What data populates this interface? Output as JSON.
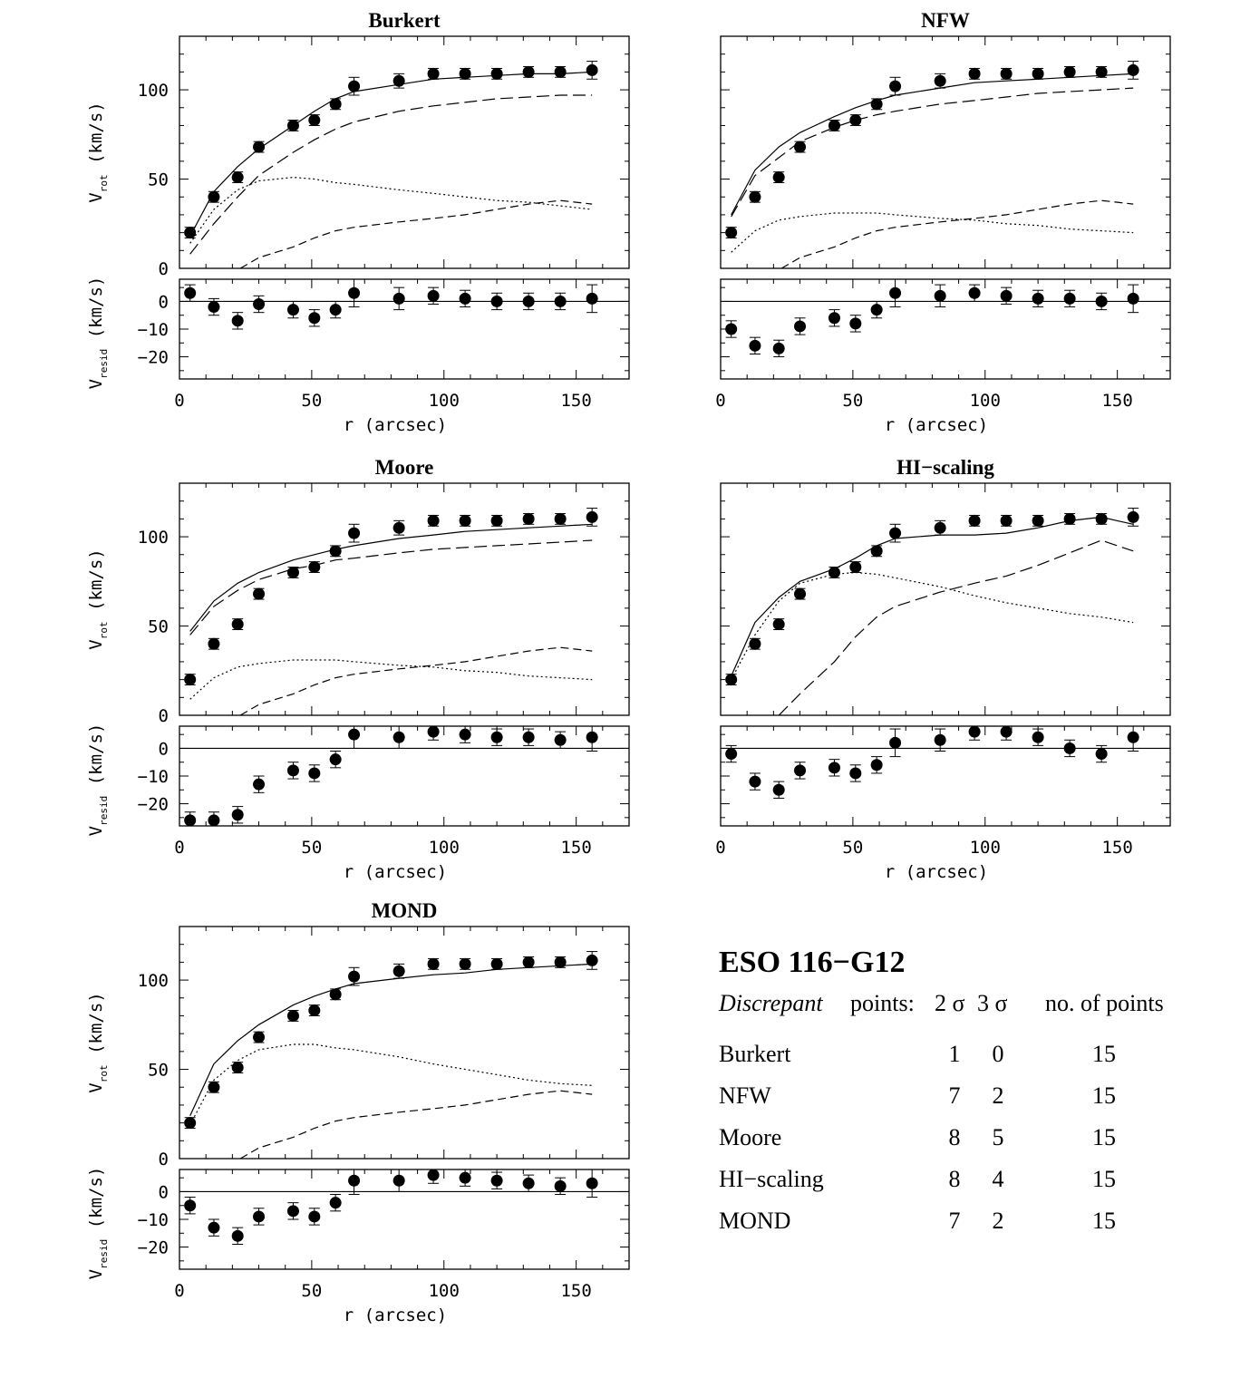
{
  "r_label": "r (arcsec)",
  "vrot_label": "V",
  "vrot_sub": "rot",
  "vresid_label": "V",
  "vresid_sub": "resid",
  "unit_label": " (km/s)",
  "x_ticks": [
    0,
    50,
    100,
    150
  ],
  "y_ticks_main": [
    0,
    50,
    100
  ],
  "y_ticks_resid": [
    0,
    -10,
    -20
  ],
  "chart_data": [
    {
      "type": "scatter",
      "title": "Burkert",
      "xlim": [
        0,
        170
      ],
      "ylim": [
        0,
        130
      ],
      "resid_ylim": [
        -28,
        8
      ],
      "observed": {
        "r": [
          4,
          13,
          22,
          30,
          43,
          51,
          59,
          66,
          83,
          96,
          108,
          120,
          132,
          144,
          156
        ],
        "v": [
          20,
          40,
          51,
          68,
          80,
          83,
          92,
          102,
          105,
          109,
          109,
          109,
          110,
          110,
          111
        ],
        "err": [
          3,
          3,
          3,
          3,
          3,
          3,
          3,
          5,
          4,
          3,
          3,
          3,
          3,
          3,
          5
        ]
      },
      "total_fit": {
        "r": [
          4,
          13,
          22,
          30,
          43,
          51,
          59,
          66,
          83,
          96,
          108,
          120,
          132,
          144,
          156
        ],
        "v": [
          18,
          43,
          57,
          67,
          80,
          88,
          95,
          99,
          103,
          106,
          107,
          108,
          109,
          109,
          110
        ]
      },
      "halo": {
        "r": [
          4,
          13,
          22,
          30,
          43,
          51,
          59,
          66,
          83,
          96,
          108,
          120,
          132,
          144,
          156
        ],
        "v": [
          8,
          25,
          40,
          52,
          65,
          72,
          78,
          82,
          88,
          91,
          93,
          95,
          96,
          97,
          97
        ]
      },
      "stellar_disk": {
        "r": [
          4,
          13,
          22,
          30,
          43,
          51,
          59,
          66,
          83,
          96,
          108,
          120,
          132,
          144,
          156
        ],
        "v": [
          14,
          33,
          44,
          49,
          51,
          50,
          48,
          47,
          44,
          42,
          40,
          38,
          37,
          35,
          33
        ]
      },
      "gas": {
        "r": [
          23,
          30,
          43,
          51,
          59,
          66,
          83,
          96,
          108,
          120,
          132,
          144,
          150,
          156
        ],
        "v": [
          0,
          6,
          12,
          17,
          21,
          23,
          26,
          28,
          30,
          33,
          36,
          38,
          37,
          36
        ]
      },
      "residuals": {
        "r": [
          4,
          13,
          22,
          30,
          43,
          51,
          59,
          66,
          83,
          96,
          108,
          120,
          132,
          144,
          156
        ],
        "v": [
          3,
          -2,
          -7,
          -1,
          -3,
          -6,
          -3,
          3,
          1,
          2,
          1,
          0,
          0,
          0,
          1
        ],
        "err": [
          3,
          3,
          3,
          3,
          3,
          3,
          3,
          5,
          4,
          3,
          3,
          3,
          3,
          3,
          5
        ]
      }
    },
    {
      "type": "scatter",
      "title": "NFW",
      "xlim": [
        0,
        170
      ],
      "ylim": [
        0,
        130
      ],
      "resid_ylim": [
        -28,
        8
      ],
      "observed": {
        "r": [
          4,
          13,
          22,
          30,
          43,
          51,
          59,
          66,
          83,
          96,
          108,
          120,
          132,
          144,
          156
        ],
        "v": [
          20,
          40,
          51,
          68,
          80,
          83,
          92,
          102,
          105,
          109,
          109,
          109,
          110,
          110,
          111
        ],
        "err": [
          3,
          3,
          3,
          3,
          3,
          3,
          3,
          5,
          4,
          3,
          3,
          3,
          3,
          3,
          5
        ]
      },
      "total_fit": {
        "r": [
          4,
          13,
          22,
          30,
          43,
          51,
          59,
          66,
          83,
          96,
          108,
          120,
          132,
          144,
          156
        ],
        "v": [
          30,
          55,
          68,
          76,
          85,
          90,
          94,
          97,
          101,
          104,
          105,
          106,
          107,
          108,
          109
        ]
      },
      "halo": {
        "r": [
          4,
          13,
          22,
          30,
          43,
          51,
          59,
          66,
          83,
          96,
          108,
          120,
          132,
          144,
          156
        ],
        "v": [
          29,
          52,
          62,
          71,
          79,
          83,
          86,
          88,
          92,
          94,
          96,
          98,
          99,
          100,
          101
        ]
      },
      "stellar_disk": {
        "r": [
          4,
          13,
          22,
          30,
          43,
          51,
          59,
          66,
          83,
          96,
          108,
          120,
          132,
          144,
          156
        ],
        "v": [
          9,
          21,
          27,
          29,
          31,
          31,
          31,
          30,
          28,
          27,
          25,
          24,
          22,
          21,
          20
        ]
      },
      "gas": {
        "r": [
          23,
          30,
          43,
          51,
          59,
          66,
          83,
          96,
          108,
          120,
          132,
          144,
          150,
          156
        ],
        "v": [
          0,
          6,
          12,
          17,
          21,
          23,
          26,
          28,
          30,
          33,
          36,
          38,
          37,
          36
        ]
      },
      "residuals": {
        "r": [
          4,
          13,
          22,
          30,
          43,
          51,
          59,
          66,
          83,
          96,
          108,
          120,
          132,
          144,
          156
        ],
        "v": [
          -10,
          -16,
          -17,
          -9,
          -6,
          -8,
          -3,
          3,
          2,
          3,
          2,
          1,
          1,
          0,
          1
        ],
        "err": [
          3,
          3,
          3,
          3,
          3,
          3,
          3,
          5,
          4,
          3,
          3,
          3,
          3,
          3,
          5
        ]
      }
    },
    {
      "type": "scatter",
      "title": "Moore",
      "xlim": [
        0,
        170
      ],
      "ylim": [
        0,
        130
      ],
      "resid_ylim": [
        -28,
        8
      ],
      "observed": {
        "r": [
          4,
          13,
          22,
          30,
          43,
          51,
          59,
          66,
          83,
          96,
          108,
          120,
          132,
          144,
          156
        ],
        "v": [
          20,
          40,
          51,
          68,
          80,
          83,
          92,
          102,
          105,
          109,
          109,
          109,
          110,
          110,
          111
        ],
        "err": [
          3,
          3,
          3,
          3,
          3,
          3,
          3,
          5,
          4,
          3,
          3,
          3,
          3,
          3,
          5
        ]
      },
      "total_fit": {
        "r": [
          4,
          13,
          22,
          30,
          43,
          51,
          59,
          66,
          83,
          96,
          108,
          120,
          132,
          144,
          156
        ],
        "v": [
          47,
          64,
          74,
          80,
          87,
          90,
          93,
          95,
          99,
          101,
          103,
          104,
          105,
          106,
          107
        ]
      },
      "halo": {
        "r": [
          4,
          13,
          22,
          30,
          43,
          51,
          59,
          66,
          83,
          96,
          108,
          120,
          132,
          144,
          156
        ],
        "v": [
          45,
          61,
          70,
          76,
          82,
          84,
          87,
          88,
          91,
          93,
          94,
          95,
          96,
          97,
          98
        ]
      },
      "stellar_disk": {
        "r": [
          4,
          13,
          22,
          30,
          43,
          51,
          59,
          66,
          83,
          96,
          108,
          120,
          132,
          144,
          156
        ],
        "v": [
          9,
          21,
          27,
          29,
          31,
          31,
          31,
          30,
          28,
          27,
          25,
          24,
          22,
          21,
          20
        ]
      },
      "gas": {
        "r": [
          23,
          30,
          43,
          51,
          59,
          66,
          83,
          96,
          108,
          120,
          132,
          144,
          150,
          156
        ],
        "v": [
          0,
          6,
          12,
          17,
          21,
          23,
          26,
          28,
          30,
          33,
          36,
          38,
          37,
          36
        ]
      },
      "residuals": {
        "r": [
          4,
          13,
          22,
          30,
          43,
          51,
          59,
          66,
          83,
          96,
          108,
          120,
          132,
          144,
          156
        ],
        "v": [
          -26,
          -26,
          -24,
          -13,
          -8,
          -9,
          -4,
          5,
          4,
          6,
          5,
          4,
          4,
          3,
          4
        ],
        "err": [
          3,
          3,
          3,
          3,
          3,
          3,
          3,
          5,
          4,
          3,
          3,
          3,
          3,
          3,
          5
        ]
      }
    },
    {
      "type": "scatter",
      "title": "HI−scaling",
      "xlim": [
        0,
        170
      ],
      "ylim": [
        0,
        130
      ],
      "resid_ylim": [
        -28,
        8
      ],
      "observed": {
        "r": [
          4,
          13,
          22,
          30,
          43,
          51,
          59,
          66,
          83,
          96,
          108,
          120,
          132,
          144,
          156
        ],
        "v": [
          20,
          40,
          51,
          68,
          80,
          83,
          92,
          102,
          105,
          109,
          109,
          109,
          110,
          110,
          111
        ],
        "err": [
          3,
          3,
          3,
          3,
          3,
          3,
          3,
          5,
          4,
          3,
          3,
          3,
          3,
          3,
          5
        ]
      },
      "total_fit": {
        "r": [
          4,
          13,
          22,
          30,
          43,
          51,
          59,
          66,
          83,
          96,
          108,
          120,
          132,
          144,
          150,
          156
        ],
        "v": [
          22,
          52,
          66,
          75,
          82,
          88,
          95,
          99,
          101,
          101,
          102,
          105,
          109,
          111,
          109,
          107
        ]
      },
      "halo": {
        "r": [
          22,
          30,
          43,
          51,
          59,
          66,
          83,
          96,
          108,
          120,
          132,
          144,
          150,
          156
        ],
        "v": [
          0,
          12,
          30,
          44,
          55,
          61,
          69,
          74,
          78,
          84,
          91,
          98,
          95,
          92
        ]
      },
      "stellar_disk": {
        "r": [
          4,
          13,
          22,
          30,
          43,
          51,
          59,
          66,
          83,
          96,
          108,
          120,
          132,
          144,
          156
        ],
        "v": [
          20,
          45,
          64,
          74,
          79,
          80,
          79,
          77,
          72,
          67,
          63,
          60,
          57,
          55,
          52
        ]
      },
      "gas": {
        "r": [],
        "v": []
      },
      "residuals": {
        "r": [
          4,
          13,
          22,
          30,
          43,
          51,
          59,
          66,
          83,
          96,
          108,
          120,
          132,
          144,
          156
        ],
        "v": [
          -2,
          -12,
          -15,
          -8,
          -7,
          -9,
          -6,
          2,
          3,
          6,
          6,
          4,
          0,
          -2,
          4
        ],
        "err": [
          3,
          3,
          3,
          3,
          3,
          3,
          3,
          5,
          4,
          3,
          3,
          3,
          3,
          3,
          5
        ]
      }
    },
    {
      "type": "scatter",
      "title": "MOND",
      "xlim": [
        0,
        170
      ],
      "ylim": [
        0,
        130
      ],
      "resid_ylim": [
        -28,
        8
      ],
      "observed": {
        "r": [
          4,
          13,
          22,
          30,
          43,
          51,
          59,
          66,
          83,
          96,
          108,
          120,
          132,
          144,
          156
        ],
        "v": [
          20,
          40,
          51,
          68,
          80,
          83,
          92,
          102,
          105,
          109,
          109,
          109,
          110,
          110,
          111
        ],
        "err": [
          3,
          3,
          3,
          3,
          3,
          3,
          3,
          5,
          4,
          3,
          3,
          3,
          3,
          3,
          5
        ]
      },
      "total_fit": {
        "r": [
          4,
          13,
          22,
          30,
          43,
          51,
          59,
          66,
          83,
          96,
          108,
          120,
          132,
          144,
          156
        ],
        "v": [
          24,
          53,
          66,
          75,
          86,
          91,
          95,
          98,
          101,
          103,
          104,
          106,
          107,
          108,
          109
        ]
      },
      "halo": {
        "r": [],
        "v": []
      },
      "stellar_disk": {
        "r": [
          4,
          13,
          22,
          30,
          43,
          51,
          59,
          66,
          83,
          96,
          108,
          120,
          132,
          144,
          156
        ],
        "v": [
          19,
          44,
          55,
          61,
          64,
          64,
          62,
          61,
          57,
          53,
          50,
          47,
          44,
          42,
          41
        ]
      },
      "gas": {
        "r": [
          23,
          30,
          43,
          51,
          59,
          66,
          83,
          96,
          108,
          120,
          132,
          144,
          150,
          156
        ],
        "v": [
          0,
          6,
          12,
          17,
          21,
          23,
          26,
          28,
          30,
          33,
          36,
          38,
          37,
          36
        ]
      },
      "residuals": {
        "r": [
          4,
          13,
          22,
          30,
          43,
          51,
          59,
          66,
          83,
          96,
          108,
          120,
          132,
          144,
          156
        ],
        "v": [
          -5,
          -13,
          -16,
          -9,
          -7,
          -9,
          -4,
          4,
          4,
          6,
          5,
          4,
          3,
          2,
          3
        ],
        "err": [
          3,
          3,
          3,
          3,
          3,
          3,
          3,
          5,
          4,
          3,
          3,
          3,
          3,
          3,
          5
        ]
      }
    }
  ],
  "summary": {
    "galaxy_name": "ESO 116−G12",
    "header_italic": "Discrepant",
    "header_points": "points:",
    "header_2sigma": "2 σ",
    "header_3sigma": "3 σ",
    "header_npoints": "no. of points",
    "rows": [
      {
        "model": "Burkert",
        "n2": "1",
        "n3": "0",
        "npts": "15"
      },
      {
        "model": "NFW",
        "n2": "7",
        "n3": "2",
        "npts": "15"
      },
      {
        "model": "Moore",
        "n2": "8",
        "n3": "5",
        "npts": "15"
      },
      {
        "model": "HI−scaling",
        "n2": "8",
        "n3": "4",
        "npts": "15"
      },
      {
        "model": "MOND",
        "n2": "7",
        "n3": "2",
        "npts": "15"
      }
    ]
  }
}
